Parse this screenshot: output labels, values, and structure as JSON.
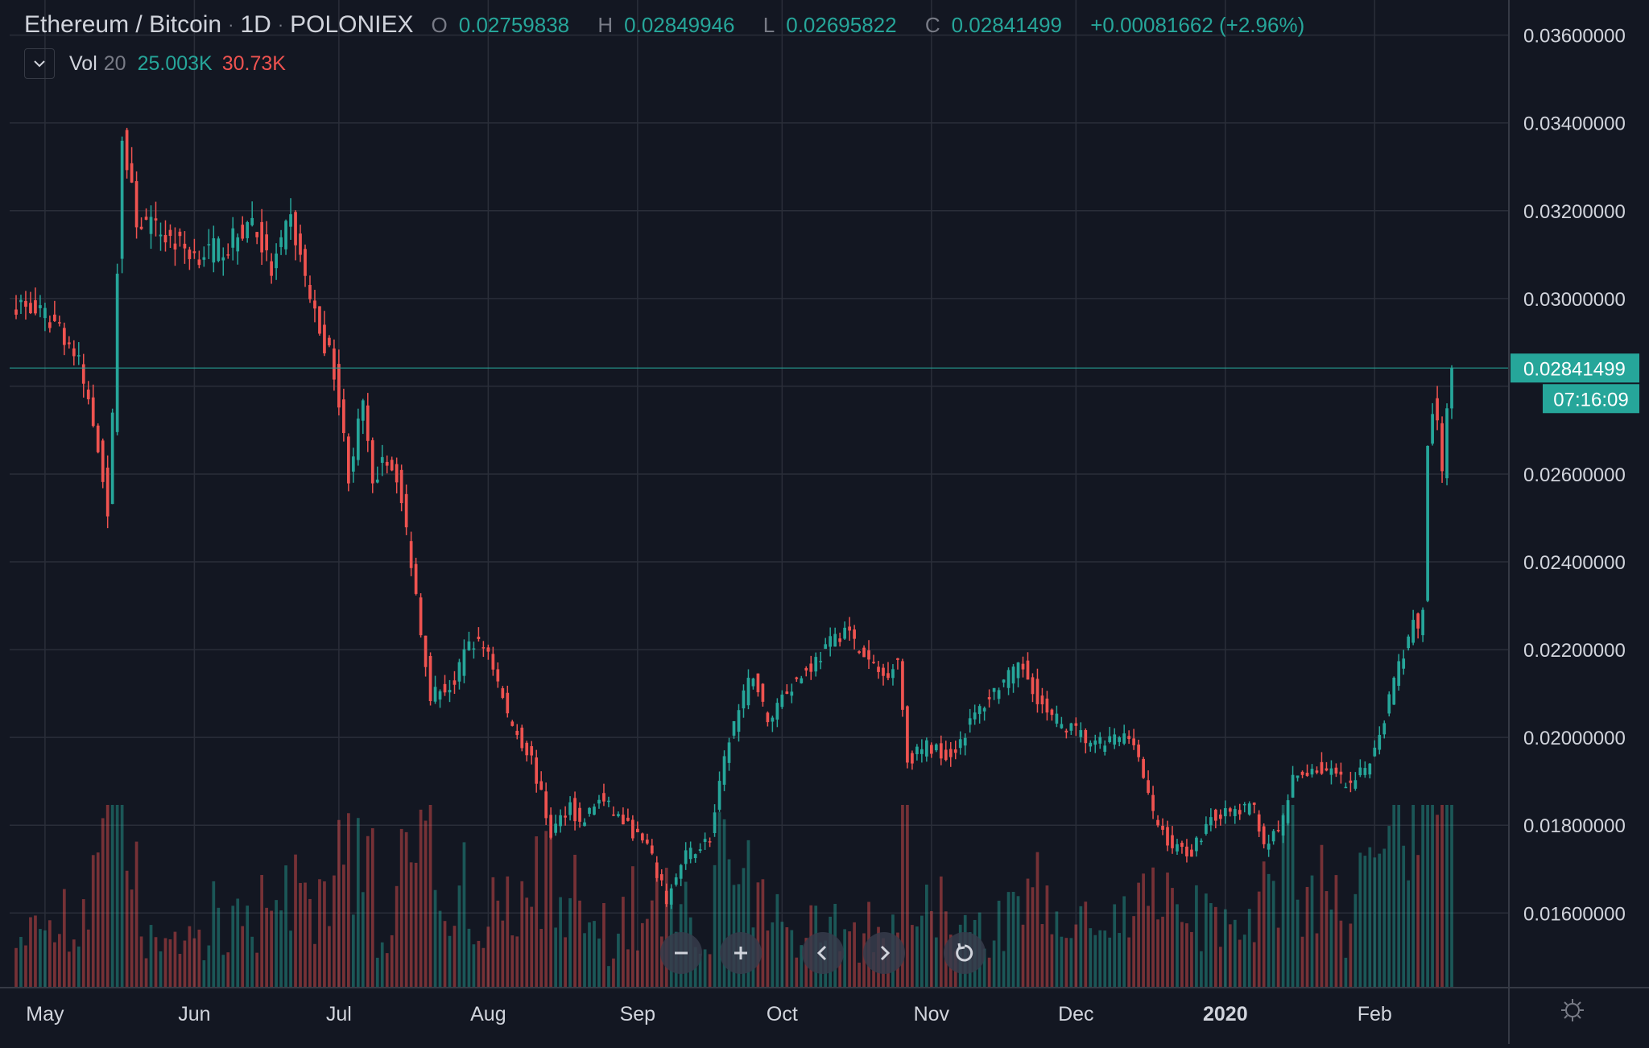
{
  "header": {
    "symbol": "Ethereum / Bitcoin",
    "interval": "1D",
    "exchange": "POLONIEX",
    "ohlc": {
      "open_label": "O",
      "open": "0.02759838",
      "high_label": "H",
      "high": "0.02849946",
      "low_label": "L",
      "low": "0.02695822",
      "close_label": "C",
      "close": "0.02841499",
      "change": "+0.00081662 (+2.96%)"
    },
    "volume": {
      "name": "Vol",
      "length": "20",
      "ma_value": "25.003K",
      "volume_value": "30.73K"
    }
  },
  "price_tag": {
    "price": "0.02841499",
    "countdown": "07:16:09"
  },
  "navigation": {
    "zoom_out": "zoom-out",
    "zoom_in": "zoom-in",
    "scroll_left": "scroll-left",
    "scroll_right": "scroll-right",
    "reset": "reset"
  },
  "colors": {
    "background": "#131722",
    "grid": "#2a2e39",
    "up": "#26a69a",
    "down": "#ef5350",
    "text": "#d1d4dc",
    "axis_text": "#d1d4dc"
  },
  "chart_data": {
    "type": "candlestick",
    "title": "Ethereum / Bitcoin",
    "xlabel": "",
    "ylabel": "",
    "ylim": [
      0.0143,
      0.0368
    ],
    "yticks": [
      "0.03600000",
      "0.03400000",
      "0.03200000",
      "0.03000000",
      "0.02600000",
      "0.02400000",
      "0.02200000",
      "0.02000000",
      "0.01800000",
      "0.01600000"
    ],
    "ytick_values": [
      0.036,
      0.034,
      0.032,
      0.03,
      0.026,
      0.024,
      0.022,
      0.02,
      0.018,
      0.016
    ],
    "xticks": [
      "May",
      "Jun",
      "Jul",
      "Aug",
      "Sep",
      "Oct",
      "Nov",
      "Dec",
      "2020",
      "Feb"
    ],
    "xtick_dates": [
      "2019-05-01",
      "2019-06-01",
      "2019-07-01",
      "2019-08-01",
      "2019-09-01",
      "2019-10-01",
      "2019-11-01",
      "2019-12-01",
      "2020-01-01",
      "2020-02-01"
    ],
    "grid": true,
    "x_start": "2019-04-25",
    "x_end": "2020-02-17",
    "last_price": 0.02841499,
    "close_path": [
      [
        "2019-04-25",
        0.0299
      ],
      [
        "2019-05-04",
        0.0294
      ],
      [
        "2019-05-08",
        0.0285
      ],
      [
        "2019-05-12",
        0.0267
      ],
      [
        "2019-05-14",
        0.0252
      ],
      [
        "2019-05-15",
        0.0272
      ],
      [
        "2019-05-16",
        0.0308
      ],
      [
        "2019-05-17",
        0.0336
      ],
      [
        "2019-05-20",
        0.0318
      ],
      [
        "2019-05-25",
        0.0315
      ],
      [
        "2019-06-01",
        0.031
      ],
      [
        "2019-06-08",
        0.0312
      ],
      [
        "2019-06-13",
        0.0318
      ],
      [
        "2019-06-17",
        0.0306
      ],
      [
        "2019-06-21",
        0.0318
      ],
      [
        "2019-06-26",
        0.0296
      ],
      [
        "2019-06-30",
        0.0284
      ],
      [
        "2019-07-03",
        0.026
      ],
      [
        "2019-07-06",
        0.0276
      ],
      [
        "2019-07-08",
        0.0256
      ],
      [
        "2019-07-10",
        0.0265
      ],
      [
        "2019-07-13",
        0.026
      ],
      [
        "2019-07-16",
        0.024
      ],
      [
        "2019-07-20",
        0.021
      ],
      [
        "2019-07-25",
        0.0212
      ],
      [
        "2019-07-28",
        0.0222
      ],
      [
        "2019-08-01",
        0.022
      ],
      [
        "2019-08-05",
        0.0205
      ],
      [
        "2019-08-10",
        0.0195
      ],
      [
        "2019-08-14",
        0.0178
      ],
      [
        "2019-08-18",
        0.0185
      ],
      [
        "2019-08-20",
        0.018
      ],
      [
        "2019-08-24",
        0.0186
      ],
      [
        "2019-08-28",
        0.0182
      ],
      [
        "2019-09-03",
        0.0175
      ],
      [
        "2019-09-07",
        0.0163
      ],
      [
        "2019-09-11",
        0.0173
      ],
      [
        "2019-09-16",
        0.0177
      ],
      [
        "2019-09-20",
        0.02
      ],
      [
        "2019-09-25",
        0.0215
      ],
      [
        "2019-09-28",
        0.0203
      ],
      [
        "2019-10-01",
        0.021
      ],
      [
        "2019-10-05",
        0.0214
      ],
      [
        "2019-10-10",
        0.022
      ],
      [
        "2019-10-14",
        0.0225
      ],
      [
        "2019-10-18",
        0.0218
      ],
      [
        "2019-10-22",
        0.0214
      ],
      [
        "2019-10-25",
        0.0218
      ],
      [
        "2019-10-27",
        0.0195
      ],
      [
        "2019-10-31",
        0.0198
      ],
      [
        "2019-11-05",
        0.0196
      ],
      [
        "2019-11-10",
        0.0205
      ],
      [
        "2019-11-15",
        0.0212
      ],
      [
        "2019-11-20",
        0.0216
      ],
      [
        "2019-11-25",
        0.0205
      ],
      [
        "2019-11-30",
        0.0202
      ],
      [
        "2019-12-05",
        0.0198
      ],
      [
        "2019-12-10",
        0.02
      ],
      [
        "2019-12-13",
        0.02
      ],
      [
        "2019-12-17",
        0.0182
      ],
      [
        "2019-12-21",
        0.0175
      ],
      [
        "2019-12-25",
        0.0174
      ],
      [
        "2019-12-29",
        0.0182
      ],
      [
        "2020-01-03",
        0.0183
      ],
      [
        "2020-01-07",
        0.0184
      ],
      [
        "2020-01-09",
        0.0176
      ],
      [
        "2020-01-12",
        0.0178
      ],
      [
        "2020-01-15",
        0.019
      ],
      [
        "2020-01-19",
        0.0193
      ],
      [
        "2020-01-23",
        0.0192
      ],
      [
        "2020-01-27",
        0.0188
      ],
      [
        "2020-01-31",
        0.0195
      ],
      [
        "2020-02-03",
        0.0205
      ],
      [
        "2020-02-06",
        0.0217
      ],
      [
        "2020-02-08",
        0.0222
      ],
      [
        "2020-02-09",
        0.0228
      ],
      [
        "2020-02-10",
        0.0224
      ],
      [
        "2020-02-11",
        0.023
      ],
      [
        "2020-02-12",
        0.0265
      ],
      [
        "2020-02-13",
        0.0275
      ],
      [
        "2020-02-14",
        0.027
      ],
      [
        "2020-02-15",
        0.026
      ],
      [
        "2020-02-16",
        0.0276
      ],
      [
        "2020-02-17",
        0.02841499
      ]
    ],
    "volume_max": 30.73
  }
}
